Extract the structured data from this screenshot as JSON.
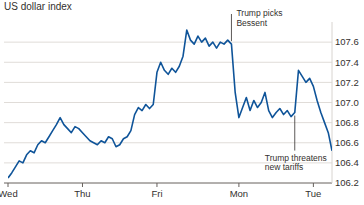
{
  "chart_data": {
    "type": "line",
    "title": "US dollar index",
    "color": "#0f5499",
    "grid": true,
    "categories": [
      "Wed",
      null,
      null,
      null,
      null,
      null,
      null,
      null,
      null,
      null,
      null,
      null,
      null,
      null,
      null,
      null,
      null,
      null,
      null,
      null,
      "Thu",
      null,
      null,
      null,
      null,
      null,
      null,
      null,
      null,
      null,
      null,
      null,
      null,
      null,
      null,
      null,
      null,
      null,
      null,
      null,
      "Fri",
      null,
      null,
      null,
      null,
      null,
      null,
      null,
      null,
      null,
      null,
      null,
      null,
      null,
      null,
      null,
      null,
      null,
      null,
      null,
      null,
      null,
      "Mon",
      null,
      null,
      null,
      null,
      null,
      null,
      null,
      null,
      null,
      null,
      null,
      null,
      null,
      null,
      null,
      null,
      null,
      null,
      null,
      "Tue",
      null,
      null,
      null,
      null,
      null
    ],
    "values": [
      106.25,
      106.3,
      106.36,
      106.42,
      106.4,
      106.48,
      106.52,
      106.5,
      106.58,
      106.62,
      106.6,
      106.66,
      106.72,
      106.78,
      106.85,
      106.78,
      106.74,
      106.7,
      106.76,
      106.74,
      106.7,
      106.66,
      106.62,
      106.6,
      106.58,
      106.62,
      106.6,
      106.66,
      106.64,
      106.56,
      106.58,
      106.64,
      106.66,
      106.72,
      106.88,
      106.95,
      106.92,
      106.98,
      106.94,
      106.98,
      107.3,
      107.4,
      107.32,
      107.28,
      107.34,
      107.3,
      107.36,
      107.46,
      107.72,
      107.62,
      107.58,
      107.66,
      107.6,
      107.64,
      107.56,
      107.6,
      107.54,
      107.6,
      107.58,
      107.62,
      107.58,
      107.1,
      106.85,
      106.95,
      107.05,
      106.92,
      107.02,
      106.95,
      107.0,
      107.1,
      106.92,
      106.85,
      106.9,
      106.94,
      106.88,
      106.92,
      106.86,
      106.9,
      107.32,
      107.26,
      107.2,
      107.24,
      107.16,
      107.02,
      106.9,
      106.8,
      106.7,
      106.52
    ],
    "ylim": [
      106.2,
      107.8
    ],
    "yticks": [
      106.2,
      106.4,
      106.6,
      106.8,
      {
        "value": 107,
        "label": "107.0"
      },
      107.2,
      107.4,
      107.6
    ],
    "annotations": [
      {
        "text": "Trump picks Bessent",
        "index": 60
      },
      {
        "text": "Trump threatens new tariffs",
        "index": 77
      }
    ]
  }
}
